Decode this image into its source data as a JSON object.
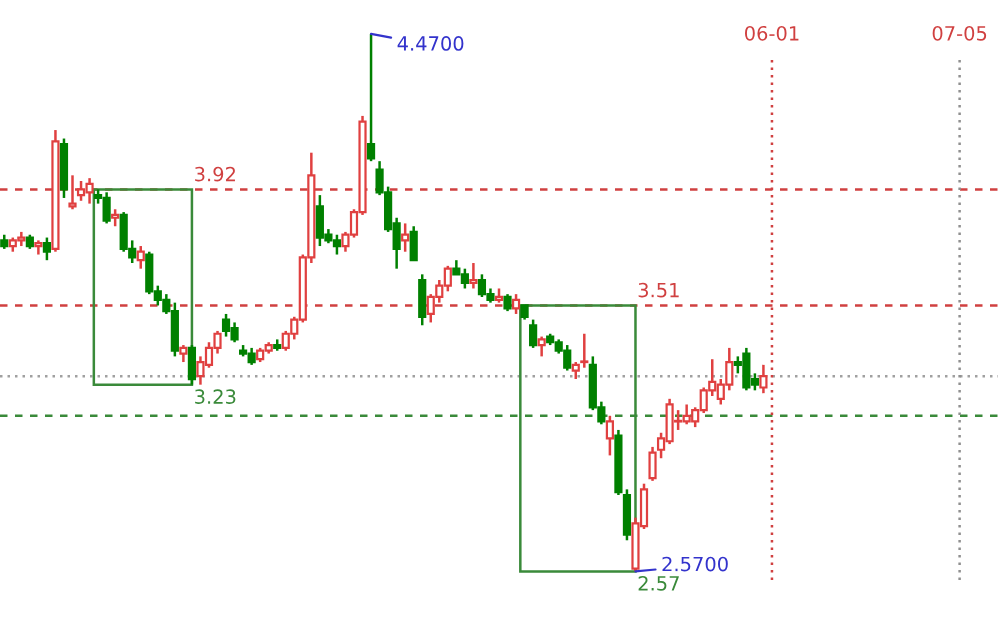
{
  "chart_data": {
    "type": "candlestick",
    "categories": [
      null,
      null,
      null,
      null,
      null,
      null,
      null,
      null,
      null,
      null,
      null,
      null,
      null,
      null,
      null,
      null,
      null,
      null,
      null,
      null,
      null,
      null,
      null,
      null,
      null,
      null,
      null,
      null,
      null,
      null,
      null,
      null,
      null,
      null,
      null,
      null,
      null,
      null,
      null,
      null,
      null,
      null,
      null,
      null,
      null,
      null,
      null,
      null,
      null,
      null,
      null,
      null,
      null,
      null,
      null,
      null,
      null,
      null,
      null,
      null,
      null,
      null,
      null,
      null,
      null,
      null,
      null,
      null,
      null,
      null,
      null,
      null,
      null,
      null,
      null,
      null,
      null,
      null,
      null,
      null,
      null,
      null,
      null,
      null,
      null,
      null,
      null,
      null,
      null,
      null,
      "06-01",
      null,
      null,
      null,
      null,
      null,
      null,
      null,
      null,
      null,
      null,
      null,
      null,
      null,
      null,
      null,
      null,
      null,
      null,
      null,
      null,
      null,
      "07-05"
    ],
    "ohlc": [
      [
        3.74,
        3.76,
        3.71,
        3.72
      ],
      [
        3.72,
        3.75,
        3.7,
        3.74
      ],
      [
        3.74,
        3.77,
        3.72,
        3.75
      ],
      [
        3.75,
        3.76,
        3.71,
        3.72
      ],
      [
        3.72,
        3.74,
        3.69,
        3.73
      ],
      [
        3.73,
        3.75,
        3.67,
        3.7
      ],
      [
        3.71,
        4.13,
        3.7,
        4.09
      ],
      [
        4.08,
        4.1,
        3.89,
        3.92
      ],
      [
        3.86,
        3.97,
        3.85,
        3.87
      ],
      [
        3.9,
        3.95,
        3.88,
        3.92
      ],
      [
        3.91,
        3.96,
        3.87,
        3.94
      ],
      [
        3.9,
        3.92,
        3.87,
        3.89
      ],
      [
        3.89,
        3.91,
        3.8,
        3.81
      ],
      [
        3.82,
        3.85,
        3.79,
        3.83
      ],
      [
        3.83,
        3.84,
        3.7,
        3.71
      ],
      [
        3.71,
        3.74,
        3.66,
        3.68
      ],
      [
        3.67,
        3.72,
        3.64,
        3.7
      ],
      [
        3.69,
        3.7,
        3.55,
        3.56
      ],
      [
        3.56,
        3.58,
        3.51,
        3.53
      ],
      [
        3.53,
        3.55,
        3.48,
        3.49
      ],
      [
        3.49,
        3.52,
        3.33,
        3.35
      ],
      [
        3.34,
        3.37,
        3.31,
        3.36
      ],
      [
        3.36,
        3.37,
        3.23,
        3.25
      ],
      [
        3.26,
        3.33,
        3.23,
        3.31
      ],
      [
        3.3,
        3.38,
        3.29,
        3.36
      ],
      [
        3.36,
        3.42,
        3.34,
        3.41
      ],
      [
        3.46,
        3.48,
        3.4,
        3.42
      ],
      [
        3.43,
        3.45,
        3.38,
        3.39
      ],
      [
        3.35,
        3.37,
        3.33,
        3.34
      ],
      [
        3.34,
        3.36,
        3.3,
        3.31
      ],
      [
        3.32,
        3.36,
        3.31,
        3.35
      ],
      [
        3.35,
        3.38,
        3.34,
        3.37
      ],
      [
        3.37,
        3.39,
        3.35,
        3.36
      ],
      [
        3.36,
        3.42,
        3.35,
        3.41
      ],
      [
        3.41,
        3.47,
        3.39,
        3.46
      ],
      [
        3.46,
        3.69,
        3.45,
        3.68
      ],
      [
        3.68,
        4.05,
        3.66,
        3.97
      ],
      [
        3.86,
        3.9,
        3.72,
        3.75
      ],
      [
        3.76,
        3.78,
        3.73,
        3.74
      ],
      [
        3.74,
        3.76,
        3.69,
        3.72
      ],
      [
        3.72,
        3.77,
        3.7,
        3.76
      ],
      [
        3.76,
        3.85,
        3.75,
        3.84
      ],
      [
        3.84,
        4.18,
        3.83,
        4.16
      ],
      [
        4.08,
        4.47,
        4.02,
        4.03
      ],
      [
        3.99,
        4.02,
        3.9,
        3.91
      ],
      [
        3.91,
        3.93,
        3.77,
        3.78
      ],
      [
        3.8,
        3.82,
        3.64,
        3.71
      ],
      [
        3.74,
        3.8,
        3.7,
        3.76
      ],
      [
        3.77,
        3.79,
        3.67,
        3.67
      ],
      [
        3.6,
        3.62,
        3.44,
        3.47
      ],
      [
        3.48,
        3.55,
        3.45,
        3.54
      ],
      [
        3.54,
        3.6,
        3.52,
        3.58
      ],
      [
        3.58,
        3.65,
        3.56,
        3.64
      ],
      [
        3.64,
        3.67,
        3.62,
        3.62
      ],
      [
        3.62,
        3.64,
        3.57,
        3.59
      ],
      [
        3.59,
        3.66,
        3.57,
        3.6
      ],
      [
        3.6,
        3.62,
        3.54,
        3.55
      ],
      [
        3.55,
        3.57,
        3.52,
        3.53
      ],
      [
        3.53,
        3.57,
        3.52,
        3.54
      ],
      [
        3.54,
        3.55,
        3.49,
        3.5
      ],
      [
        3.5,
        3.55,
        3.48,
        3.53
      ],
      [
        3.51,
        3.51,
        3.46,
        3.47
      ],
      [
        3.44,
        3.46,
        3.36,
        3.37
      ],
      [
        3.37,
        3.4,
        3.33,
        3.39
      ],
      [
        3.4,
        3.41,
        3.37,
        3.38
      ],
      [
        3.38,
        3.39,
        3.34,
        3.35
      ],
      [
        3.35,
        3.37,
        3.28,
        3.29
      ],
      [
        3.28,
        3.31,
        3.25,
        3.3
      ],
      [
        3.31,
        3.41,
        3.29,
        3.31
      ],
      [
        3.3,
        3.33,
        3.14,
        3.15
      ],
      [
        3.15,
        3.17,
        3.09,
        3.1
      ],
      [
        3.04,
        3.12,
        2.98,
        3.1
      ],
      [
        3.05,
        3.07,
        2.84,
        2.85
      ],
      [
        2.84,
        2.86,
        2.68,
        2.7
      ],
      [
        2.58,
        2.76,
        2.57,
        2.74
      ],
      [
        2.73,
        2.88,
        2.72,
        2.86
      ],
      [
        2.9,
        3.01,
        2.89,
        2.99
      ],
      [
        3.0,
        3.06,
        2.97,
        3.04
      ],
      [
        3.03,
        3.18,
        3.02,
        3.16
      ],
      [
        3.1,
        3.14,
        3.07,
        3.1
      ],
      [
        3.1,
        3.16,
        3.09,
        3.12
      ],
      [
        3.1,
        3.15,
        3.08,
        3.14
      ],
      [
        3.14,
        3.22,
        3.13,
        3.21
      ],
      [
        3.21,
        3.32,
        3.19,
        3.24
      ],
      [
        3.18,
        3.25,
        3.16,
        3.23
      ],
      [
        3.23,
        3.36,
        3.21,
        3.31
      ],
      [
        3.31,
        3.33,
        3.27,
        3.3
      ],
      [
        3.34,
        3.36,
        3.21,
        3.22
      ],
      [
        3.25,
        3.27,
        3.21,
        3.23
      ],
      [
        3.22,
        3.3,
        3.2,
        3.26
      ],
      null,
      null,
      null,
      null,
      null,
      null,
      null,
      null,
      null,
      null,
      null,
      null,
      null,
      null,
      null,
      null,
      null,
      null,
      null,
      null,
      null,
      null,
      null
    ],
    "colors": [
      "#008000",
      "#e04040",
      "#e04040",
      "#008000",
      "#e04040",
      "#008000",
      "#e04040",
      "#008000",
      "#e04040",
      "#e04040",
      "#e04040",
      "#008000",
      "#008000",
      "#e04040",
      "#008000",
      "#008000",
      "#e04040",
      "#008000",
      "#008000",
      "#008000",
      "#008000",
      "#e04040",
      "#008000",
      "#e04040",
      "#e04040",
      "#e04040",
      "#008000",
      "#008000",
      "#008000",
      "#008000",
      "#e04040",
      "#e04040",
      "#008000",
      "#e04040",
      "#e04040",
      "#e04040",
      "#e04040",
      "#008000",
      "#008000",
      "#008000",
      "#e04040",
      "#e04040",
      "#e04040",
      "#008000",
      "#008000",
      "#008000",
      "#008000",
      "#e04040",
      "#008000",
      "#008000",
      "#e04040",
      "#e04040",
      "#e04040",
      "#008000",
      "#008000",
      "#e04040",
      "#008000",
      "#008000",
      "#e04040",
      "#008000",
      "#e04040",
      "#008000",
      "#008000",
      "#e04040",
      "#008000",
      "#008000",
      "#008000",
      "#e04040",
      "#e04040",
      "#008000",
      "#008000",
      "#e04040",
      "#008000",
      "#008000",
      "#e04040",
      "#e04040",
      "#e04040",
      "#e04040",
      "#e04040",
      "#e04040",
      "#e04040",
      "#e04040",
      "#e04040",
      "#e04040",
      "#e04040",
      "#e04040",
      "#008000",
      "#008000",
      "#008000",
      "#e04040",
      null,
      null,
      null,
      null,
      null,
      null,
      null,
      null,
      null,
      null,
      null,
      null,
      null,
      null,
      null,
      null,
      null,
      null,
      null,
      null,
      null,
      null,
      null
    ],
    "tick_labels": "x",
    "ref_lines": [
      {
        "axis": "y",
        "value": 3.92,
        "color": "#d04040",
        "line_style": "dashed"
      },
      {
        "axis": "y",
        "value": 3.51,
        "color": "#d04040",
        "line_style": "dashed"
      },
      {
        "axis": "y",
        "value": 3.12,
        "color": "#3a8a3a",
        "line_style": "dashed"
      },
      {
        "axis": "y",
        "value": 3.26,
        "color": "#a0a0a0",
        "line_style": "dotted"
      },
      {
        "axis": "x",
        "value": "06-01",
        "color": "#d04040",
        "line_style": "dotted"
      },
      {
        "axis": "x",
        "value": "07-05",
        "color": "#909090",
        "line_style": "dotted"
      }
    ],
    "annotations": [
      {
        "text": "3.92",
        "y": 3.92
      },
      {
        "text": "3.23",
        "y": 3.23
      },
      {
        "text": "3.51",
        "y": 3.51
      },
      "2.57",
      "4.4700",
      "2.5700"
    ]
  }
}
